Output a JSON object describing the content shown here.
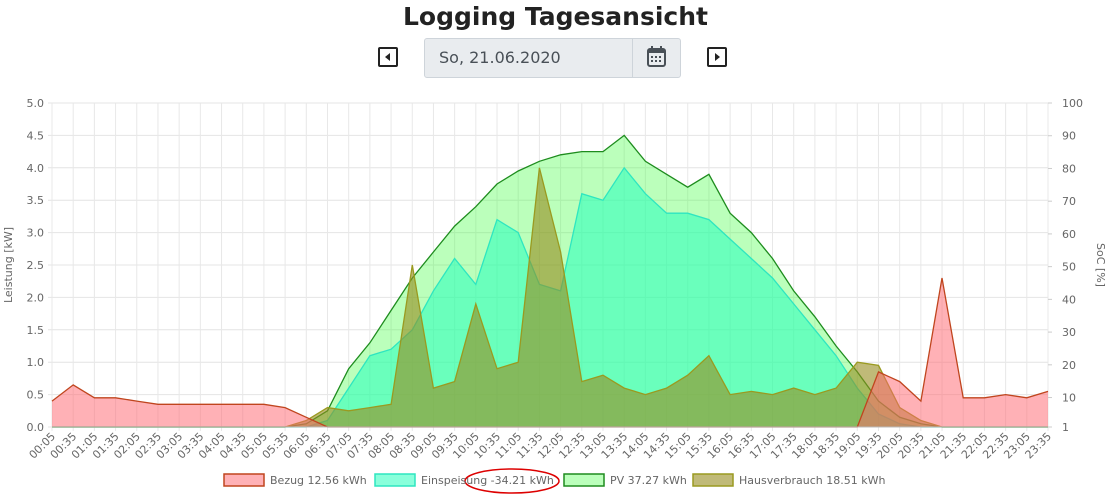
{
  "header": {
    "title": "Logging Tagesansicht"
  },
  "date_picker": {
    "date": "So, 21.06.2020"
  },
  "chart_data": {
    "type": "area",
    "categories": [
      "00:05",
      "00:35",
      "01:05",
      "01:35",
      "02:05",
      "02:35",
      "03:05",
      "03:35",
      "04:05",
      "04:35",
      "05:05",
      "05:35",
      "06:05",
      "06:35",
      "07:05",
      "07:35",
      "08:05",
      "08:35",
      "09:05",
      "09:35",
      "10:05",
      "10:35",
      "11:05",
      "11:35",
      "12:05",
      "12:35",
      "13:05",
      "13:35",
      "14:05",
      "14:35",
      "15:05",
      "15:35",
      "16:05",
      "16:35",
      "17:05",
      "17:35",
      "18:05",
      "18:35",
      "19:05",
      "19:35",
      "20:05",
      "20:35",
      "21:05",
      "21:35",
      "22:05",
      "22:35",
      "23:05",
      "23:35"
    ],
    "y_label": "Leistung [kW]",
    "y2_label": "SoC [%]",
    "ylim": [
      0,
      5
    ],
    "yticks": [
      {
        "value": 0,
        "label": "0.0"
      },
      0.5,
      {
        "value": 1,
        "label": "1.0"
      },
      1.5,
      {
        "value": 2,
        "label": "2.0"
      },
      2.5,
      {
        "value": 3,
        "label": "3.0"
      },
      3.5,
      {
        "value": 4,
        "label": "4.0"
      },
      4.5,
      {
        "value": 5,
        "label": "5.0"
      }
    ],
    "y2lim": [
      1,
      100
    ],
    "y2ticks": [
      1,
      10,
      20,
      30,
      40,
      50,
      60,
      70,
      80,
      90,
      100
    ],
    "grid": true,
    "series": [
      {
        "name": "PV 37.27 kWh",
        "color": "#1e8c1e",
        "fill": "rgba(60,255,60,0.35)",
        "values": [
          0,
          0,
          0,
          0,
          0,
          0,
          0,
          0,
          0,
          0,
          0,
          0,
          0.05,
          0.25,
          0.9,
          1.3,
          1.8,
          2.3,
          2.7,
          3.1,
          3.4,
          3.75,
          3.95,
          4.1,
          4.2,
          4.25,
          4.25,
          4.5,
          4.1,
          3.9,
          3.7,
          3.9,
          3.3,
          3.0,
          2.6,
          2.1,
          1.7,
          1.25,
          0.85,
          0.4,
          0.15,
          0.05,
          0,
          0,
          0,
          0,
          0,
          0
        ]
      },
      {
        "name": "Einspeisung -34.21 kWh",
        "color": "#2ee6c0",
        "fill": "rgba(40,255,190,0.55)",
        "values": [
          0,
          0,
          0,
          0,
          0,
          0,
          0,
          0,
          0,
          0,
          0,
          0,
          0,
          0.1,
          0.6,
          1.1,
          1.2,
          1.5,
          2.1,
          2.6,
          2.2,
          3.2,
          3.0,
          2.2,
          2.1,
          3.6,
          3.5,
          4.0,
          3.6,
          3.3,
          3.3,
          3.2,
          2.9,
          2.6,
          2.3,
          1.9,
          1.5,
          1.1,
          0.6,
          0.2,
          0.05,
          0,
          0,
          0,
          0,
          0,
          0,
          0
        ]
      },
      {
        "name": "Hausverbrauch 18.51 kWh",
        "color": "#9a9a20",
        "fill": "rgba(150,140,30,0.6)",
        "values": [
          0,
          0,
          0,
          0,
          0,
          0,
          0,
          0,
          0,
          0,
          0,
          0,
          0.1,
          0.3,
          0.25,
          0.3,
          0.35,
          2.5,
          0.6,
          0.7,
          1.9,
          0.9,
          1.0,
          4.0,
          2.7,
          0.7,
          0.8,
          0.6,
          0.5,
          0.6,
          0.8,
          1.1,
          0.5,
          0.55,
          0.5,
          0.6,
          0.5,
          0.6,
          1.0,
          0.95,
          0.3,
          0.1,
          0,
          0,
          0,
          0,
          0,
          0
        ]
      },
      {
        "name": "Bezug 12.56 kWh",
        "color": "#c0451e",
        "fill": "rgba(255,100,110,0.5)",
        "values": [
          0.4,
          0.65,
          0.45,
          0.45,
          0.4,
          0.35,
          0.35,
          0.35,
          0.35,
          0.35,
          0.35,
          0.3,
          0.15,
          0,
          0,
          0,
          0,
          0,
          0,
          0,
          0,
          0,
          0,
          0,
          0,
          0,
          0,
          0,
          0,
          0,
          0,
          0,
          0,
          0,
          0,
          0,
          0,
          0,
          0,
          0.85,
          0.7,
          0.4,
          2.3,
          0.45,
          0.45,
          0.5,
          0.45,
          0.55
        ]
      }
    ],
    "legend_order": [
      3,
      1,
      0,
      2
    ]
  }
}
